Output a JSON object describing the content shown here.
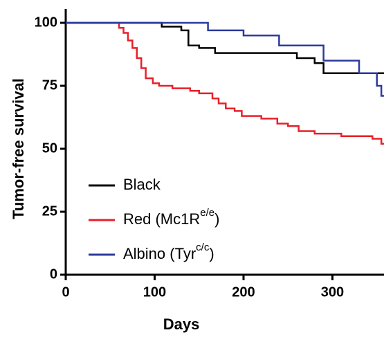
{
  "chart_data": {
    "type": "step-line",
    "x_label": "Days",
    "y_label": "Tumor-free survival",
    "xlim": [
      0,
      358
    ],
    "ylim": [
      0,
      100
    ],
    "xticks": [
      0,
      100,
      200,
      300
    ],
    "yticks": [
      0,
      25,
      50,
      75,
      100
    ],
    "series": [
      {
        "name": "Black",
        "color": "#000000",
        "x": [
          0,
          108,
          130,
          138,
          150,
          168,
          260,
          280,
          290,
          358
        ],
        "values": [
          100,
          98.5,
          97,
          91,
          90,
          88,
          86,
          84,
          80,
          80
        ]
      },
      {
        "name": "Red (Mc1R",
        "name_superscript": "e/e",
        "name_suffix": ")",
        "color": "#e8202a",
        "x": [
          0,
          60,
          65,
          70,
          75,
          80,
          85,
          90,
          98,
          105,
          120,
          140,
          150,
          165,
          172,
          180,
          190,
          198,
          220,
          238,
          250,
          262,
          280,
          310,
          345,
          355,
          358
        ],
        "values": [
          100,
          98,
          96,
          93,
          90,
          86,
          82,
          78,
          76,
          75,
          74,
          73,
          72,
          70,
          68,
          66,
          65,
          63,
          62,
          60,
          59,
          57,
          56,
          55,
          54,
          52,
          52
        ]
      },
      {
        "name": "Albino (Tyr",
        "name_superscript": "c/c",
        "name_suffix": ")",
        "color": "#2b3a9c",
        "x": [
          0,
          160,
          200,
          240,
          290,
          330,
          350,
          355,
          358
        ],
        "values": [
          100,
          97,
          95,
          91,
          85,
          80,
          75,
          71,
          71
        ]
      }
    ]
  }
}
